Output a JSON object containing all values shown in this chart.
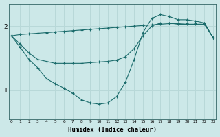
{
  "xlabel": "Humidex (Indice chaleur)",
  "ylabel": "",
  "background_color": "#cce8e8",
  "grid_color": "#b8d8d8",
  "line_color": "#1a6b6b",
  "x_values": [
    0,
    1,
    2,
    3,
    4,
    5,
    6,
    7,
    8,
    9,
    10,
    11,
    12,
    13,
    14,
    15,
    16,
    17,
    18,
    19,
    20,
    21,
    22,
    23
  ],
  "line1": [
    1.85,
    1.87,
    1.88,
    1.89,
    1.9,
    1.91,
    1.92,
    1.93,
    1.94,
    1.95,
    1.96,
    1.97,
    1.98,
    1.99,
    2.0,
    2.01,
    2.02,
    2.03,
    2.04,
    2.04,
    2.05,
    2.05,
    2.05,
    1.82
  ],
  "line2": [
    1.85,
    1.72,
    1.58,
    1.48,
    1.45,
    1.42,
    1.42,
    1.42,
    1.42,
    1.43,
    1.44,
    1.45,
    1.47,
    1.52,
    1.65,
    1.85,
    2.0,
    2.05,
    2.05,
    2.03,
    2.03,
    2.03,
    2.03,
    1.82
  ],
  "line3": [
    1.85,
    1.67,
    1.48,
    1.35,
    1.18,
    1.1,
    1.03,
    0.95,
    0.85,
    0.8,
    0.78,
    0.8,
    0.9,
    1.12,
    1.48,
    1.9,
    2.12,
    2.18,
    2.15,
    2.1,
    2.1,
    2.08,
    2.05,
    1.82
  ],
  "yticks": [
    1,
    2
  ],
  "xticks": [
    0,
    1,
    2,
    3,
    4,
    5,
    6,
    7,
    8,
    9,
    10,
    11,
    12,
    13,
    14,
    15,
    16,
    17,
    18,
    19,
    20,
    21,
    22,
    23
  ],
  "xlim": [
    -0.3,
    23.3
  ],
  "ylim": [
    0.55,
    2.35
  ]
}
